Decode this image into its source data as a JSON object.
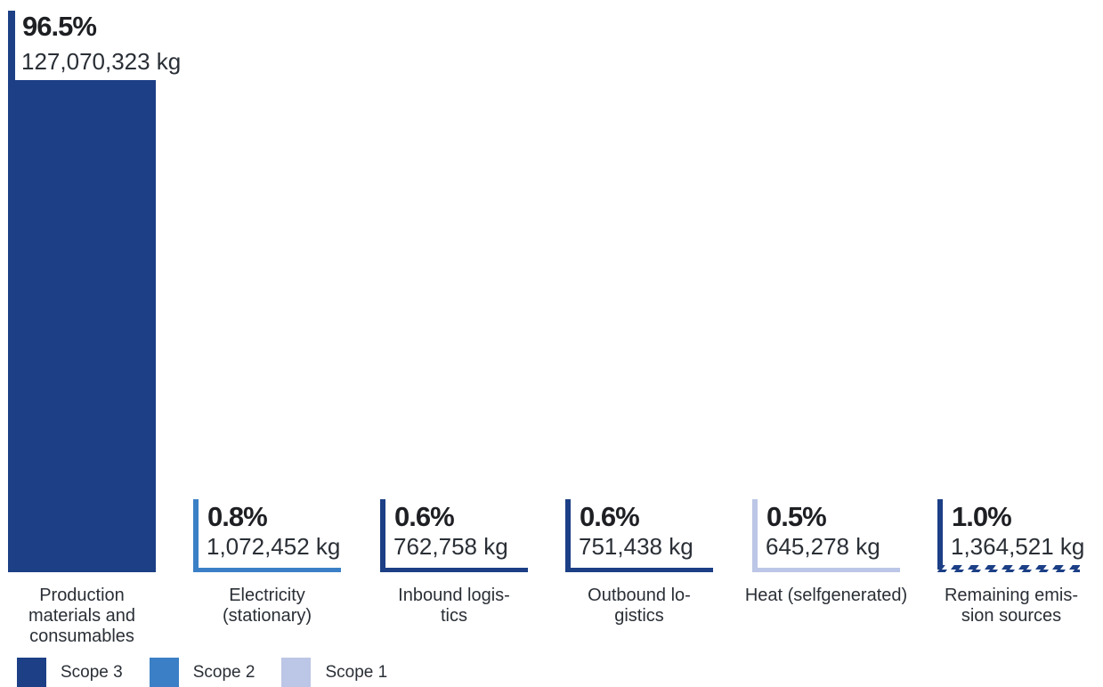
{
  "colors": {
    "scope3": "#1c3f86",
    "scope2": "#3b80c6",
    "scope1": "#bcc6e6"
  },
  "chart_data": {
    "type": "bar",
    "categories": [
      "Production materials and consumables",
      "Electricity (stationary)",
      "Inbound logistics",
      "Outbound logistics",
      "Heat (selfgenerated)",
      "Remaining emission sources"
    ],
    "display_labels": [
      "Production\nmaterials and\nconsumables",
      "Electricity\n(stationary)",
      "Inbound logis-\ntics",
      "Outbound lo-\ngistics",
      "Heat (selfgenerated)",
      "Remaining emis-\nsion sources"
    ],
    "values": [
      127070323,
      1072452,
      762758,
      751438,
      645278,
      1364521
    ],
    "value_labels": [
      "127,070,323 kg",
      "1,072,452 kg",
      "762,758 kg",
      "751,438 kg",
      "645,278 kg",
      "1,364,521 kg"
    ],
    "percent_labels": [
      "96.5%",
      "0.8%",
      "0.6%",
      "0.6%",
      "0.5%",
      "1.0%"
    ],
    "scope": [
      "Scope 3",
      "Scope 2",
      "Scope 3",
      "Scope 3",
      "Scope 1",
      "mixed"
    ],
    "legend": [
      {
        "name": "Scope 3",
        "color_key": "scope3"
      },
      {
        "name": "Scope 2",
        "color_key": "scope2"
      },
      {
        "name": "Scope 1",
        "color_key": "scope1"
      }
    ],
    "title": "",
    "xlabel": "",
    "ylabel": "",
    "grid": false,
    "legend_position": "bottom-left"
  }
}
